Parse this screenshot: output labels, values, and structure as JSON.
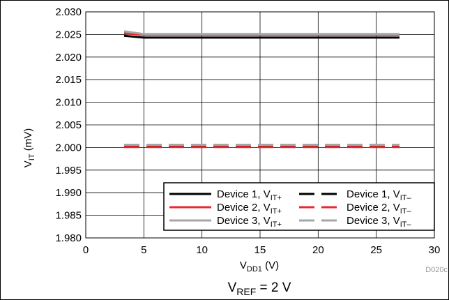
{
  "chart_data": {
    "type": "line",
    "x": [
      3.3,
      5,
      10,
      15,
      20,
      25,
      27
    ],
    "xlabel": {
      "main": "V",
      "sub": "DD1",
      "rest": " (V)"
    },
    "ylabel": {
      "main": "V",
      "sub": "IT",
      "rest": " (mV)"
    },
    "xlim": [
      0,
      30
    ],
    "ylim": [
      1.98,
      2.03
    ],
    "xticks": [
      "0",
      "5",
      "10",
      "15",
      "20",
      "25",
      "30"
    ],
    "yticks": [
      "1.980",
      "1.985",
      "1.990",
      "1.995",
      "2.000",
      "2.005",
      "2.010",
      "2.015",
      "2.020",
      "2.025",
      "2.030"
    ],
    "grid": true,
    "legend_position": "bottom-right",
    "series": [
      {
        "name": {
          "main": "Device 1, V",
          "sub": "IT+"
        },
        "color": "#000000",
        "style": "solid",
        "values": [
          2.0247,
          2.0243,
          2.0243,
          2.0243,
          2.0243,
          2.0243,
          2.0243
        ]
      },
      {
        "name": {
          "main": "Device 2, V",
          "sub": "IT+"
        },
        "color": "#e8292f",
        "style": "solid",
        "values": [
          2.0253,
          2.0249,
          2.0249,
          2.0249,
          2.0249,
          2.0249,
          2.0249
        ]
      },
      {
        "name": {
          "main": "Device 3, V",
          "sub": "IT+"
        },
        "color": "#a6a6a6",
        "style": "solid",
        "values": [
          2.0257,
          2.0251,
          2.0251,
          2.0251,
          2.0251,
          2.0251,
          2.0251
        ]
      },
      {
        "name": {
          "main": "Device 1, V",
          "sub": "IT–"
        },
        "color": "#000000",
        "style": "dashed",
        "values": [
          2.0003,
          2.0003,
          2.0003,
          2.0003,
          2.0003,
          2.0003,
          2.0003
        ]
      },
      {
        "name": {
          "main": "Device 2, V",
          "sub": "IT–"
        },
        "color": "#e8292f",
        "style": "dashed",
        "values": [
          2.0001,
          2.0001,
          2.0001,
          2.0001,
          2.0001,
          2.0001,
          2.0001
        ]
      },
      {
        "name": {
          "main": "Device 3, V",
          "sub": "IT–"
        },
        "color": "#a6a6a6",
        "style": "dashed",
        "values": [
          2.0006,
          2.0006,
          2.0006,
          2.0006,
          2.0006,
          2.0006,
          2.0006
        ]
      }
    ],
    "figure_code": "D020c",
    "caption": {
      "main": "V",
      "sub": "REF",
      "rest": " = 2 V"
    }
  }
}
